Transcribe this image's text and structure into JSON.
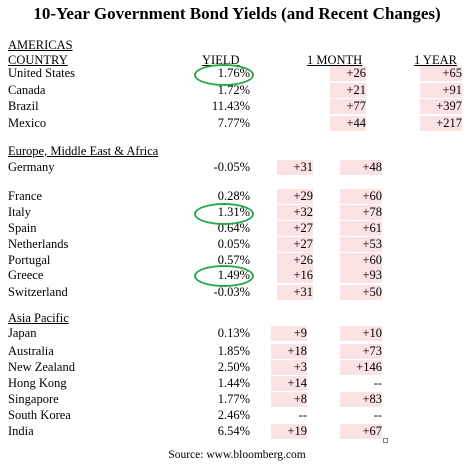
{
  "title": "10-Year Government Bond Yields (and Recent Changes)",
  "headers": {
    "region_label": "AMERICAS",
    "country": "COUNTRY",
    "yield": "YIELD",
    "one_month": "1 MONTH",
    "one_year": "1 YEAR"
  },
  "americas": [
    {
      "country": "United States",
      "yield": "1.76%",
      "m1": "+26",
      "y1": "+65"
    },
    {
      "country": "Canada",
      "yield": "1.72%",
      "m1": "+21",
      "y1": "+91"
    },
    {
      "country": "Brazil",
      "yield": "11.43%",
      "m1": "+77",
      "y1": "+397"
    },
    {
      "country": "Mexico",
      "yield": "7.77%",
      "m1": "+44",
      "y1": "+217"
    }
  ],
  "emea_label": "Europe, Middle East & Africa",
  "emea": [
    {
      "country": "Germany",
      "yield": "-0.05%",
      "m1": "+31",
      "y1": "+48"
    },
    {
      "country": "France",
      "yield": "0.28%",
      "m1": "+29",
      "y1": "+60"
    },
    {
      "country": "Italy",
      "yield": "1.31%",
      "m1": "+32",
      "y1": "+78"
    },
    {
      "country": "Spain",
      "yield": "0.64%",
      "m1": "+27",
      "y1": "+61"
    },
    {
      "country": "Netherlands",
      "yield": "0.05%",
      "m1": "+27",
      "y1": "+53"
    },
    {
      "country": "Portugal",
      "yield": "0.57%",
      "m1": "+26",
      "y1": "+60"
    },
    {
      "country": "Greece",
      "yield": "1.49%",
      "m1": "+16",
      "y1": "+93"
    },
    {
      "country": "Switzerland",
      "yield": "-0.03%",
      "m1": "+31",
      "y1": "+50"
    }
  ],
  "asia_label": "Asia Pacific",
  "asia": [
    {
      "country": "Japan",
      "yield": "0.13%",
      "m1": "+9",
      "y1": "+10"
    },
    {
      "country": "Australia",
      "yield": "1.85%",
      "m1": "+18",
      "y1": "+73"
    },
    {
      "country": "New Zealand",
      "yield": "2.50%",
      "m1": "+3",
      "y1": "+146"
    },
    {
      "country": "Hong Kong",
      "yield": "1.44%",
      "m1": "+14",
      "y1": "--"
    },
    {
      "country": "Singapore",
      "yield": "1.77%",
      "m1": "+8",
      "y1": "+83"
    },
    {
      "country": "South Korea",
      "yield": "2.46%",
      "m1": "--",
      "y1": "--"
    },
    {
      "country": "India",
      "yield": "6.54%",
      "m1": "+19",
      "y1": "+67"
    }
  ],
  "source": "Source: www.bloomberg.com",
  "highlight_color": "#fbe3e4",
  "circle_color": "#2aa84a"
}
